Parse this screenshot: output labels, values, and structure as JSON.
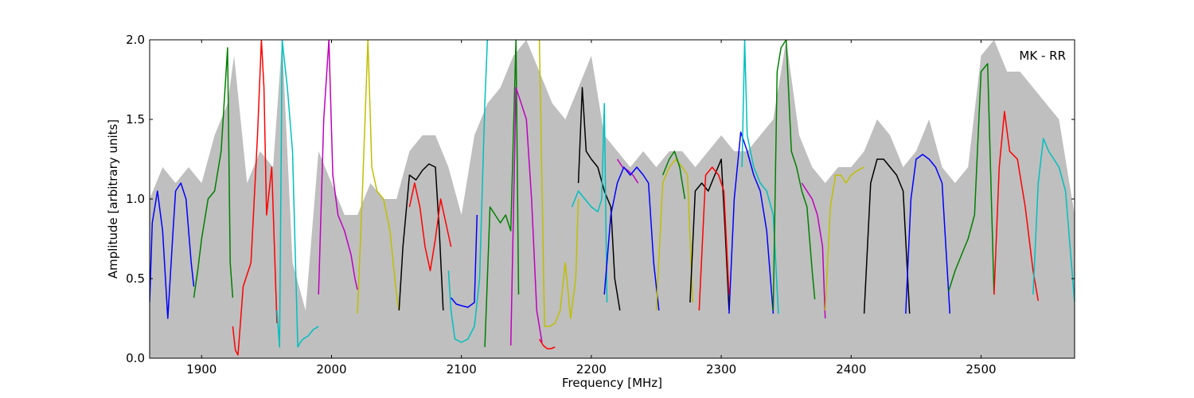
{
  "chart_data": {
    "type": "line",
    "title": "",
    "annotation": "MK - RR",
    "xlabel": "Frequency [MHz]",
    "ylabel": "Amplitude [arbitrary units]",
    "xlim": [
      1860,
      2572
    ],
    "ylim": [
      0.0,
      2.0
    ],
    "grid": false,
    "x_ticks": [
      1900,
      2000,
      2100,
      2200,
      2300,
      2400,
      2500
    ],
    "y_ticks": [
      0.0,
      0.5,
      1.0,
      1.5,
      2.0
    ],
    "x_tick_labels": [
      "1900",
      "2000",
      "2100",
      "2200",
      "2300",
      "2400",
      "2500"
    ],
    "y_tick_labels": [
      "0.0",
      "0.5",
      "1.0",
      "1.5",
      "2.0"
    ],
    "envelope": {
      "color": "#bfbfbf",
      "x": [
        1860,
        1870,
        1880,
        1890,
        1900,
        1910,
        1920,
        1925,
        1935,
        1945,
        1955,
        1962,
        1970,
        1980,
        1990,
        2000,
        2010,
        2020,
        2030,
        2040,
        2050,
        2060,
        2070,
        2080,
        2090,
        2100,
        2110,
        2120,
        2130,
        2140,
        2150,
        2160,
        2170,
        2180,
        2190,
        2200,
        2210,
        2220,
        2230,
        2240,
        2250,
        2260,
        2270,
        2280,
        2290,
        2300,
        2310,
        2320,
        2330,
        2340,
        2350,
        2360,
        2370,
        2380,
        2390,
        2400,
        2410,
        2420,
        2430,
        2440,
        2450,
        2460,
        2470,
        2480,
        2490,
        2500,
        2510,
        2520,
        2530,
        2540,
        2550,
        2560,
        2572
      ],
      "upper": [
        1.0,
        1.2,
        1.1,
        1.2,
        1.1,
        1.4,
        1.6,
        1.9,
        1.1,
        1.3,
        1.2,
        2.0,
        0.6,
        0.3,
        1.3,
        1.1,
        0.9,
        0.9,
        1.1,
        1.0,
        1.0,
        1.3,
        1.4,
        1.4,
        1.2,
        0.9,
        1.4,
        1.6,
        1.7,
        1.9,
        2.0,
        1.8,
        1.6,
        1.5,
        1.7,
        1.9,
        1.4,
        1.3,
        1.2,
        1.3,
        1.2,
        1.3,
        1.3,
        1.2,
        1.3,
        1.4,
        1.3,
        1.3,
        1.4,
        1.5,
        2.0,
        1.4,
        1.2,
        1.1,
        1.2,
        1.2,
        1.3,
        1.5,
        1.4,
        1.2,
        1.3,
        1.5,
        1.2,
        1.1,
        1.2,
        1.9,
        2.0,
        1.8,
        1.8,
        1.7,
        1.6,
        1.5,
        0.9
      ]
    },
    "series": [
      {
        "color": "#0000ff",
        "x": [
          1860,
          1862,
          1866,
          1870,
          1874,
          1878,
          1880,
          1884,
          1888,
          1892,
          1894
        ],
        "values": [
          0.35,
          0.85,
          1.05,
          0.8,
          0.25,
          0.8,
          1.05,
          1.1,
          1.0,
          0.6,
          0.45
        ]
      },
      {
        "color": "#008000",
        "x": [
          1894,
          1897,
          1900,
          1905,
          1910,
          1915,
          1920,
          1922,
          1924
        ],
        "values": [
          0.38,
          0.55,
          0.75,
          1.0,
          1.05,
          1.3,
          1.95,
          0.6,
          0.38
        ]
      },
      {
        "color": "#ff0000",
        "x": [
          1924,
          1926,
          1928,
          1932,
          1938,
          1943,
          1946,
          1948,
          1950,
          1954,
          1958
        ],
        "values": [
          0.2,
          0.05,
          0.02,
          0.45,
          0.6,
          1.4,
          2.0,
          1.7,
          0.9,
          1.2,
          0.22
        ]
      },
      {
        "color": "#00bfbf",
        "x": [
          1958,
          1960,
          1962,
          1964,
          1966,
          1970,
          1974,
          1976,
          1978,
          1982,
          1986,
          1990
        ],
        "values": [
          0.3,
          0.07,
          2.0,
          1.85,
          1.7,
          1.3,
          0.07,
          0.1,
          0.12,
          0.14,
          0.18,
          0.2
        ]
      },
      {
        "color": "#bf00bf",
        "x": [
          1990,
          1994,
          1998,
          2001,
          2005,
          2010,
          2015,
          2018,
          2020
        ],
        "values": [
          0.4,
          1.5,
          2.0,
          1.15,
          0.9,
          0.8,
          0.65,
          0.5,
          0.43
        ]
      },
      {
        "color": "#bfbf00",
        "x": [
          2020,
          2024,
          2028,
          2031,
          2035,
          2040,
          2045,
          2050,
          2052
        ],
        "values": [
          0.28,
          1.1,
          2.0,
          1.2,
          1.05,
          1.0,
          0.8,
          0.4,
          0.3
        ]
      },
      {
        "color": "#000000",
        "x": [
          2052,
          2055,
          2060,
          2065,
          2070,
          2075,
          2080,
          2083,
          2086
        ],
        "values": [
          0.3,
          0.7,
          1.15,
          1.12,
          1.18,
          1.22,
          1.2,
          0.8,
          0.3
        ]
      },
      {
        "color": "#ff0000",
        "x": [
          2060,
          2064,
          2068,
          2072,
          2076,
          2080,
          2084,
          2088,
          2092
        ],
        "values": [
          0.95,
          1.1,
          0.95,
          0.7,
          0.55,
          0.75,
          1.0,
          0.85,
          0.7
        ]
      },
      {
        "color": "#0000ff",
        "x": [
          2092,
          2096,
          2100,
          2105,
          2110,
          2112
        ],
        "values": [
          0.38,
          0.34,
          0.33,
          0.32,
          0.35,
          0.9
        ]
      },
      {
        "color": "#00bfbf",
        "x": [
          2090,
          2092,
          2095,
          2100,
          2105,
          2110,
          2114,
          2118,
          2120
        ],
        "values": [
          0.55,
          0.3,
          0.12,
          0.1,
          0.12,
          0.2,
          0.5,
          1.6,
          2.0
        ]
      },
      {
        "color": "#008000",
        "x": [
          2118,
          2122,
          2126,
          2130,
          2134,
          2138,
          2142,
          2144
        ],
        "values": [
          0.07,
          0.95,
          0.9,
          0.85,
          0.9,
          0.8,
          2.0,
          0.4
        ]
      },
      {
        "color": "#bf00bf",
        "x": [
          2138,
          2142,
          2146,
          2150,
          2154,
          2158,
          2162
        ],
        "values": [
          0.08,
          1.7,
          1.6,
          1.5,
          1.0,
          0.3,
          0.1
        ]
      },
      {
        "color": "#bfbf00",
        "x": [
          2160,
          2164,
          2168,
          2172,
          2176,
          2180,
          2184,
          2188,
          2190
        ],
        "values": [
          2.0,
          0.2,
          0.2,
          0.22,
          0.3,
          0.6,
          0.25,
          0.5,
          1.0
        ]
      },
      {
        "color": "#ff0000",
        "x": [
          2160,
          2163,
          2166,
          2169,
          2172
        ],
        "values": [
          0.12,
          0.08,
          0.06,
          0.06,
          0.07
        ]
      },
      {
        "color": "#000000",
        "x": [
          2190,
          2193,
          2196,
          2200,
          2205,
          2210,
          2215,
          2218,
          2222
        ],
        "values": [
          1.1,
          1.7,
          1.3,
          1.25,
          1.2,
          1.05,
          0.95,
          0.5,
          0.3
        ]
      },
      {
        "color": "#00bfbf",
        "x": [
          2185,
          2190,
          2195,
          2200,
          2205,
          2208,
          2210,
          2212
        ],
        "values": [
          0.95,
          1.05,
          1.0,
          0.95,
          0.92,
          1.0,
          1.6,
          0.35
        ]
      },
      {
        "color": "#bf00bf",
        "x": [
          2220,
          2224,
          2228,
          2232,
          2236
        ],
        "values": [
          1.25,
          1.2,
          1.18,
          1.15,
          1.1
        ]
      },
      {
        "color": "#0000ff",
        "x": [
          2210,
          2215,
          2220,
          2225,
          2230,
          2235,
          2240,
          2244,
          2248,
          2252
        ],
        "values": [
          0.4,
          0.9,
          1.1,
          1.2,
          1.15,
          1.2,
          1.15,
          1.1,
          0.6,
          0.3
        ]
      },
      {
        "color": "#bfbf00",
        "x": [
          2250,
          2255,
          2260,
          2265,
          2270,
          2274,
          2278
        ],
        "values": [
          0.3,
          1.1,
          1.2,
          1.25,
          1.2,
          1.15,
          0.35
        ]
      },
      {
        "color": "#008000",
        "x": [
          2255,
          2260,
          2264,
          2268,
          2272
        ],
        "values": [
          1.15,
          1.25,
          1.3,
          1.2,
          1.0
        ]
      },
      {
        "color": "#000000",
        "x": [
          2276,
          2280,
          2285,
          2290,
          2295,
          2300,
          2303,
          2306
        ],
        "values": [
          0.35,
          1.05,
          1.1,
          1.05,
          1.15,
          1.25,
          0.8,
          0.3
        ]
      },
      {
        "color": "#ff0000",
        "x": [
          2283,
          2288,
          2293,
          2298,
          2302,
          2306
        ],
        "values": [
          0.3,
          1.15,
          1.2,
          1.15,
          1.05,
          0.4
        ]
      },
      {
        "color": "#0000ff",
        "x": [
          2306,
          2310,
          2315,
          2320,
          2325,
          2330,
          2335,
          2340
        ],
        "values": [
          0.28,
          1.0,
          1.42,
          1.3,
          1.15,
          1.05,
          0.8,
          0.28
        ]
      },
      {
        "color": "#00bfbf",
        "x": [
          2316,
          2318,
          2320,
          2325,
          2330,
          2335,
          2340,
          2344
        ],
        "values": [
          1.2,
          2.0,
          1.4,
          1.2,
          1.1,
          1.05,
          0.9,
          0.28
        ]
      },
      {
        "color": "#008000",
        "x": [
          2340,
          2343,
          2346,
          2350,
          2354,
          2358,
          2362,
          2366,
          2370,
          2372
        ],
        "values": [
          0.3,
          1.8,
          1.95,
          2.0,
          1.3,
          1.2,
          1.05,
          0.95,
          0.55,
          0.37
        ]
      },
      {
        "color": "#bf00bf",
        "x": [
          2362,
          2366,
          2370,
          2374,
          2378,
          2380
        ],
        "values": [
          1.1,
          1.05,
          1.0,
          0.9,
          0.7,
          0.25
        ]
      },
      {
        "color": "#bfbf00",
        "x": [
          2380,
          2384,
          2388,
          2392,
          2396,
          2400,
          2405,
          2410
        ],
        "values": [
          0.3,
          0.95,
          1.15,
          1.15,
          1.1,
          1.15,
          1.18,
          1.2
        ]
      },
      {
        "color": "#000000",
        "x": [
          2410,
          2415,
          2420,
          2425,
          2430,
          2435,
          2440,
          2445
        ],
        "values": [
          0.28,
          1.1,
          1.25,
          1.25,
          1.2,
          1.15,
          1.05,
          0.28
        ]
      },
      {
        "color": "#0000ff",
        "x": [
          2442,
          2446,
          2450,
          2455,
          2460,
          2465,
          2470,
          2476
        ],
        "values": [
          0.28,
          1.0,
          1.25,
          1.28,
          1.25,
          1.2,
          1.1,
          0.28
        ]
      },
      {
        "color": "#008000",
        "x": [
          2475,
          2480,
          2485,
          2490,
          2495,
          2500,
          2505,
          2510
        ],
        "values": [
          0.42,
          0.55,
          0.65,
          0.75,
          0.9,
          1.8,
          1.85,
          0.4
        ]
      },
      {
        "color": "#ff0000",
        "x": [
          2510,
          2514,
          2518,
          2522,
          2528,
          2534,
          2540,
          2544
        ],
        "values": [
          0.4,
          1.2,
          1.55,
          1.3,
          1.25,
          0.95,
          0.55,
          0.36
        ]
      },
      {
        "color": "#00bfbf",
        "x": [
          2540,
          2544,
          2548,
          2552,
          2556,
          2560,
          2565,
          2572
        ],
        "values": [
          0.4,
          1.1,
          1.38,
          1.3,
          1.25,
          1.2,
          1.05,
          0.35
        ]
      }
    ]
  }
}
